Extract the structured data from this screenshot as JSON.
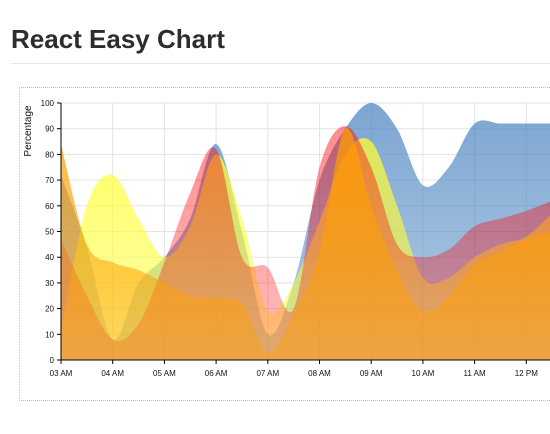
{
  "page": {
    "title": "React Easy Chart"
  },
  "chart_data": {
    "type": "area",
    "title": "React Easy Chart",
    "xlabel": "",
    "ylabel": "Percentage",
    "x_ticks": [
      "03 AM",
      "04 AM",
      "05 AM",
      "06 AM",
      "07 AM",
      "08 AM",
      "09 AM",
      "10 AM",
      "11 AM",
      "12 PM"
    ],
    "ylim": [
      0,
      100
    ],
    "y_ticks": [
      0,
      10,
      20,
      30,
      40,
      50,
      60,
      70,
      80,
      90,
      100
    ],
    "interpolation": "cardinal",
    "grid": true,
    "x": [
      "03:00",
      "03:30",
      "04:00",
      "04:30",
      "05:00",
      "05:30",
      "06:00",
      "06:30",
      "07:00",
      "07:30",
      "08:00",
      "08:30",
      "09:00",
      "09:30",
      "10:00",
      "10:30",
      "11:00",
      "11:30",
      "12:00",
      "12:30"
    ],
    "series": [
      {
        "color": "#4f87c2",
        "opacity": 0.75,
        "values": [
          72,
          44,
          8,
          30,
          40,
          55,
          84,
          50,
          10,
          30,
          70,
          90,
          100,
          90,
          68,
          75,
          92,
          92,
          92,
          92
        ]
      },
      {
        "color": "#ffff33",
        "opacity": 0.75,
        "values": [
          12,
          60,
          72,
          55,
          40,
          52,
          80,
          55,
          19,
          30,
          54,
          80,
          85,
          60,
          32,
          32,
          40,
          45,
          48,
          57
        ]
      },
      {
        "color": "#ff0000",
        "opacity": 0.45,
        "values": [
          47,
          25,
          8,
          14,
          38,
          65,
          82,
          40,
          36,
          20,
          75,
          91,
          75,
          45,
          40,
          43,
          52,
          55,
          58,
          62
        ]
      },
      {
        "color": "#ffa000",
        "opacity": 0.75,
        "values": [
          84,
          45,
          38,
          35,
          30,
          25,
          24,
          22,
          3,
          18,
          42,
          90,
          60,
          35,
          19,
          25,
          37,
          42,
          47,
          50
        ]
      }
    ]
  }
}
